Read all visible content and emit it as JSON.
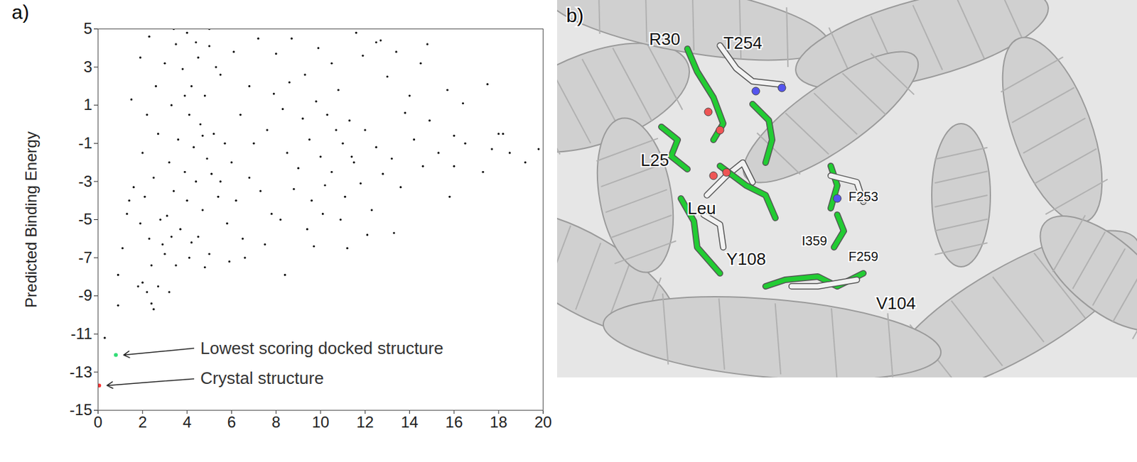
{
  "chart_data": {
    "type": "scatter",
    "panel_label": "a)",
    "ylabel": "Predicted Binding Energy",
    "xlim": [
      0,
      20
    ],
    "xticks": [
      0,
      2,
      4,
      6,
      8,
      10,
      12,
      14,
      16,
      18,
      20
    ],
    "ylim": [
      -15,
      5
    ],
    "yticks": [
      -15,
      -13,
      -11,
      -9,
      -7,
      -5,
      -3,
      -1,
      1,
      3,
      5
    ],
    "grid": false,
    "series": [
      {
        "color": "#000000",
        "marker": "dot",
        "x": [
          3.5,
          4,
          4.5,
          5,
          3.8,
          4.2,
          4.8,
          5.5,
          3.3,
          4.1,
          4.6,
          5.2,
          3.6,
          4.3,
          4.9,
          5.7,
          3.2,
          3.9,
          4.4,
          5.1,
          6,
          3.4,
          4,
          4.7,
          5.4,
          3.1,
          3.7,
          4.5,
          5.8,
          2.9,
          4.1,
          5,
          3.5,
          6.5,
          6.2,
          6.8,
          7,
          6.4,
          6.8,
          6.1,
          7.2,
          5.3,
          4.4,
          3,
          2.7,
          2.5,
          2.8,
          2.3,
          2.6,
          3.9,
          4.7,
          5.5,
          4.2,
          3.3,
          4.8,
          5.9,
          6.6,
          7.5,
          7.8,
          7.3,
          7.6,
          7.9,
          8,
          5,
          3.4,
          8.5,
          9,
          9.5,
          10,
          10.5,
          11,
          11.5,
          9.2,
          9.8,
          10.3,
          10.8,
          11.3,
          12,
          12.5,
          8.8,
          9.6,
          10.2,
          11.1,
          11.8,
          12.3,
          12.8,
          13.2,
          13.8,
          14.2,
          14.6,
          13,
          10.5,
          9.3,
          11.9,
          8.7,
          9.9,
          12.7,
          8.2,
          9.4,
          10.9,
          12.1,
          13.6,
          14,
          14.9,
          15.3,
          15.7,
          14.5,
          13.4,
          11.6,
          9.7,
          11.2,
          10.1,
          8.3,
          8.6,
          11.4,
          10.7,
          16,
          16.4,
          16.5,
          15.8,
          16,
          17.3,
          17.5,
          17.7,
          18,
          18.2,
          18.5,
          19.2,
          19.8,
          14.8,
          12.5,
          13.3,
          8.4,
          0.3,
          0.9,
          0.9,
          1.1,
          1.3,
          1.4,
          1.5,
          1.6,
          1.8,
          2,
          2.2,
          2.4,
          2.5,
          2.7,
          3.2,
          2.4,
          3,
          1.9,
          2.1,
          2,
          2.2,
          1.9,
          2.3
        ],
        "y": [
          4.2,
          4.8,
          3.5,
          4.1,
          2.9,
          2,
          1.5,
          2.6,
          1,
          0.5,
          0,
          -0.5,
          -0.8,
          -1.2,
          -1.8,
          -1,
          -2,
          -2.5,
          -3,
          -2.6,
          -2,
          -3.5,
          -4,
          -4.5,
          -3.8,
          -4.8,
          -5.5,
          -5.9,
          -5.2,
          -6.3,
          -7,
          -6.8,
          -7.4,
          -6,
          -4,
          -2.8,
          -1,
          0.5,
          2,
          3.8,
          4.5,
          3,
          4.3,
          3.2,
          -0.5,
          -2.8,
          -5,
          -6,
          2,
          1.5,
          -0.6,
          -3,
          -6.2,
          -5.9,
          -7.5,
          -7.2,
          -7,
          -6.3,
          -4.7,
          -3.5,
          -0.3,
          1.6,
          3.7,
          5,
          5,
          -1.5,
          -2.3,
          -0.8,
          -1.7,
          -2.5,
          -1,
          -2,
          0.3,
          1.2,
          0.5,
          1.8,
          0.2,
          -0.3,
          -1.2,
          -3.4,
          -4,
          -3.2,
          -3.8,
          -3.1,
          -4.5,
          -2.6,
          -1.8,
          0.6,
          -0.8,
          -2.2,
          2.5,
          3.2,
          2.6,
          3.6,
          4.5,
          4,
          4.4,
          -5,
          -5.5,
          -5,
          -5.8,
          -3.3,
          1.5,
          0.2,
          -1.5,
          1.8,
          3.2,
          3.8,
          4.8,
          -6.4,
          -6.5,
          -4.7,
          0.8,
          2.2,
          -1.7,
          -0.3,
          -0.6,
          1.1,
          -1,
          -3.8,
          -2.2,
          -2.5,
          2.1,
          -1.3,
          -0.5,
          -0.5,
          -1.5,
          -2,
          -1.3,
          4.2,
          4.3,
          -5.7,
          -7.9,
          -11.2,
          -9.5,
          -7.9,
          -6.5,
          -4.7,
          -4,
          1.3,
          -3.3,
          -8.5,
          -8.3,
          -8.8,
          -9.4,
          -9.7,
          -8.5,
          -8.8,
          -7.4,
          -6.8,
          -5.2,
          -3.8,
          -1.5,
          0.5,
          3.5,
          4.6
        ]
      },
      {
        "color": "#33dd77",
        "marker": "dot",
        "x": [
          0.8
        ],
        "y": [
          -12.1
        ]
      },
      {
        "color": "#ff3333",
        "marker": "dot",
        "x": [
          0.05
        ],
        "y": [
          -13.7
        ]
      }
    ],
    "annotations": [
      {
        "text": "Lowest scoring docked structure",
        "x": 0.8,
        "y": -12.1
      },
      {
        "text": "Crystal structure",
        "x": 0.05,
        "y": -13.7
      }
    ]
  },
  "image_panel": {
    "panel_label": "b)",
    "labels": [
      "R30",
      "T254",
      "L25",
      "F253",
      "Leu",
      "F259",
      "I359",
      "Y108",
      "V104"
    ]
  }
}
